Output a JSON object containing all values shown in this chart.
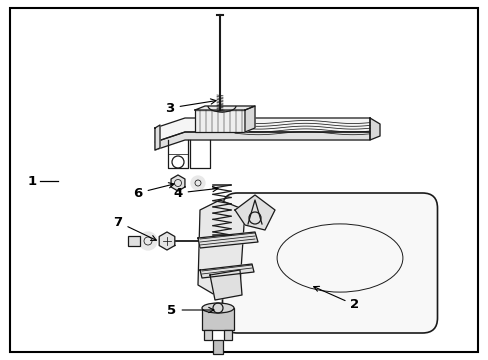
{
  "bg_color": "#ffffff",
  "border_color": "#000000",
  "line_color": "#1a1a1a",
  "figsize": [
    4.89,
    3.6
  ],
  "dpi": 100,
  "lw_main": 0.9,
  "lw_thin": 0.55
}
